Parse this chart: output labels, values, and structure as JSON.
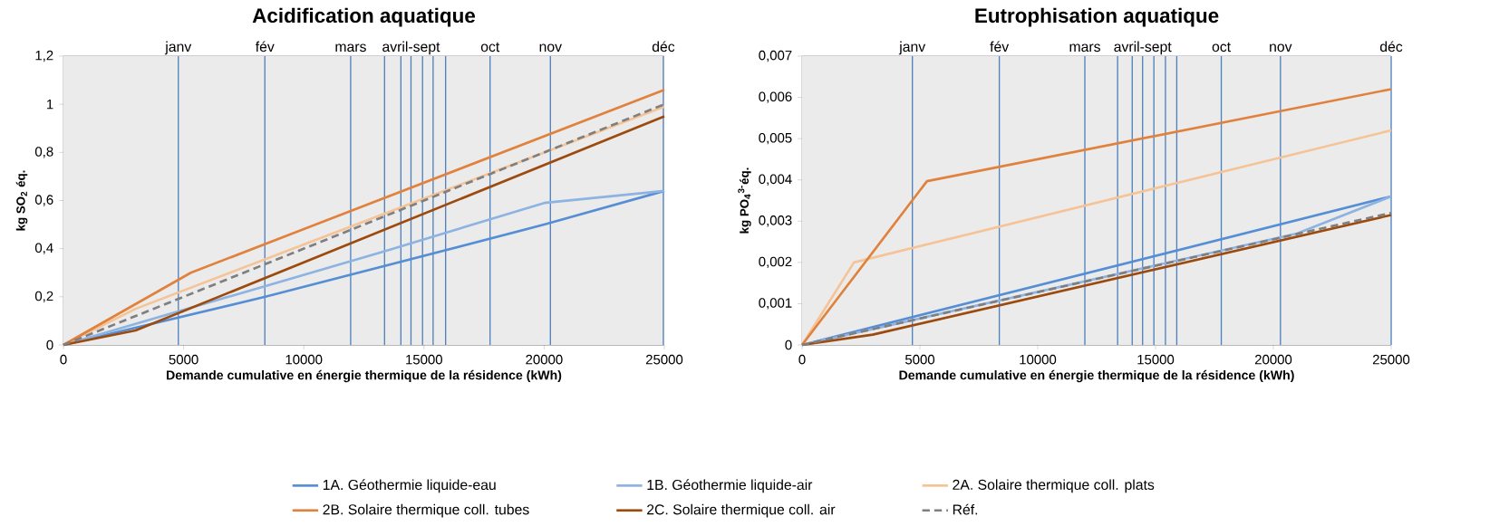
{
  "chart_data": [
    {
      "type": "line",
      "title": "Acidification aquatique",
      "xlabel": "Demande cumulative en énergie thermique de la résidence (kWh)",
      "ylabel": "kg SO$_{2}$ éq.",
      "xlim": [
        0,
        25000
      ],
      "xticks": [
        0,
        5000,
        10000,
        15000,
        20000,
        25000
      ],
      "ylim": [
        0,
        1.2
      ],
      "yticks": [
        0,
        {
          "value": 0.2,
          "label": "0,2"
        },
        {
          "value": 0.4,
          "label": "0,4"
        },
        {
          "value": 0.6,
          "label": "0,6"
        },
        {
          "value": 0.8,
          "label": "0,8"
        },
        1,
        {
          "value": 1.2,
          "label": "1,2"
        }
      ],
      "grid": "y",
      "legend": "bottom",
      "series": [
        {
          "name": "1A. Géothermie liquide-eau",
          "color": "#558ed5",
          "x": [
            0,
            8400,
            20000,
            25000
          ],
          "values": [
            0,
            0.2,
            0.5,
            0.64
          ]
        },
        {
          "name": "1B. Géothermie liquide-air",
          "color": "#8db3e2",
          "x": [
            0,
            13400,
            20000,
            25000
          ],
          "values": [
            0,
            0.39,
            0.59,
            0.64
          ]
        },
        {
          "name": "2A. Solaire thermique coll. plats",
          "color": "#f5c396",
          "x": [
            0,
            3000,
            25000
          ],
          "values": [
            0,
            0.15,
            0.99
          ]
        },
        {
          "name": "2B. Solaire thermique coll. tubes",
          "color": "#e0823d",
          "x": [
            0,
            5300,
            25000
          ],
          "values": [
            0,
            0.3,
            1.06
          ]
        },
        {
          "name": "2C. Solaire thermique coll. air",
          "color": "#9c4a0e",
          "x": [
            0,
            3000,
            25000
          ],
          "values": [
            0,
            0.06,
            0.95
          ]
        },
        {
          "name": "Réf.",
          "color": "#7f7f7f",
          "line_style": "dashed",
          "x": [
            0,
            25000
          ],
          "values": [
            0,
            1.0
          ]
        }
      ],
      "ref_lines": [
        {
          "axis": "x",
          "value": 4780,
          "label": "janv",
          "color": "#4f81bd"
        },
        {
          "axis": "x",
          "value": 8380,
          "label": "fév",
          "color": "#4f81bd"
        },
        {
          "axis": "x",
          "value": 11950,
          "label": "mars",
          "color": "#4f81bd"
        },
        {
          "axis": "x",
          "value": 13360,
          "color": "#4f81bd"
        },
        {
          "axis": "x",
          "value": 14040,
          "color": "#4f81bd"
        },
        {
          "axis": "x",
          "value": 14460,
          "label": "avril-sept",
          "color": "#4f81bd"
        },
        {
          "axis": "x",
          "value": 14940,
          "color": "#4f81bd"
        },
        {
          "axis": "x",
          "value": 15380,
          "color": "#4f81bd"
        },
        {
          "axis": "x",
          "value": 15900,
          "color": "#4f81bd"
        },
        {
          "axis": "x",
          "value": 17750,
          "label": "oct",
          "color": "#4f81bd"
        },
        {
          "axis": "x",
          "value": 20260,
          "label": "nov",
          "color": "#4f81bd"
        },
        {
          "axis": "x",
          "value": 24960,
          "label": "déc",
          "color": "#4f81bd"
        }
      ]
    },
    {
      "type": "line",
      "title": "Eutrophisation aquatique",
      "xlabel": "Demande cumulative en énergie thermique de la résidence (kWh)",
      "ylabel": "kg PO$_{4}$$^{3-}$éq.",
      "xlim": [
        0,
        25000
      ],
      "xticks": [
        0,
        5000,
        10000,
        15000,
        20000,
        25000
      ],
      "ylim": [
        0,
        0.007
      ],
      "yticks": [
        0,
        {
          "value": 0.001,
          "label": "0,001"
        },
        {
          "value": 0.002,
          "label": "0,002"
        },
        {
          "value": 0.003,
          "label": "0,003"
        },
        {
          "value": 0.004,
          "label": "0,004"
        },
        {
          "value": 0.005,
          "label": "0,005"
        },
        {
          "value": 0.006,
          "label": "0,006"
        },
        {
          "value": 0.007,
          "label": "0,007"
        }
      ],
      "grid": "y",
      "series": [
        {
          "color": "#558ed5",
          "x": [
            0,
            25000
          ],
          "values": [
            0,
            0.0036
          ]
        },
        {
          "color": "#8db3e2",
          "x": [
            0,
            21000,
            25000
          ],
          "values": [
            0,
            0.0027,
            0.0036
          ]
        },
        {
          "color": "#f5c396",
          "x": [
            0,
            2200,
            25000
          ],
          "values": [
            0,
            0.002,
            0.0052
          ]
        },
        {
          "color": "#e0823d",
          "x": [
            0,
            5300,
            25000
          ],
          "values": [
            0,
            0.00397,
            0.0062
          ]
        },
        {
          "color": "#9c4a0e",
          "x": [
            0,
            3000,
            25000
          ],
          "values": [
            0,
            0.00025,
            0.00315
          ]
        },
        {
          "color": "#7f7f7f",
          "line_style": "dashed",
          "x": [
            0,
            25000
          ],
          "values": [
            0,
            0.0032
          ]
        }
      ],
      "ref_lines": [
        {
          "axis": "x",
          "value": 4680,
          "label": "janv",
          "color": "#4f81bd"
        },
        {
          "axis": "x",
          "value": 8370,
          "label": "fév",
          "color": "#4f81bd"
        },
        {
          "axis": "x",
          "value": 12000,
          "label": "mars",
          "color": "#4f81bd"
        },
        {
          "axis": "x",
          "value": 13390,
          "color": "#4f81bd"
        },
        {
          "axis": "x",
          "value": 14010,
          "color": "#4f81bd"
        },
        {
          "axis": "x",
          "value": 14450,
          "label": "avril-sept",
          "color": "#4f81bd"
        },
        {
          "axis": "x",
          "value": 14930,
          "color": "#4f81bd"
        },
        {
          "axis": "x",
          "value": 15420,
          "color": "#4f81bd"
        },
        {
          "axis": "x",
          "value": 15900,
          "color": "#4f81bd"
        },
        {
          "axis": "x",
          "value": 17790,
          "label": "oct",
          "color": "#4f81bd"
        },
        {
          "axis": "x",
          "value": 20300,
          "label": "nov",
          "color": "#4f81bd"
        },
        {
          "axis": "x",
          "value": 25000,
          "label": "déc",
          "color": "#4f81bd"
        }
      ]
    }
  ]
}
